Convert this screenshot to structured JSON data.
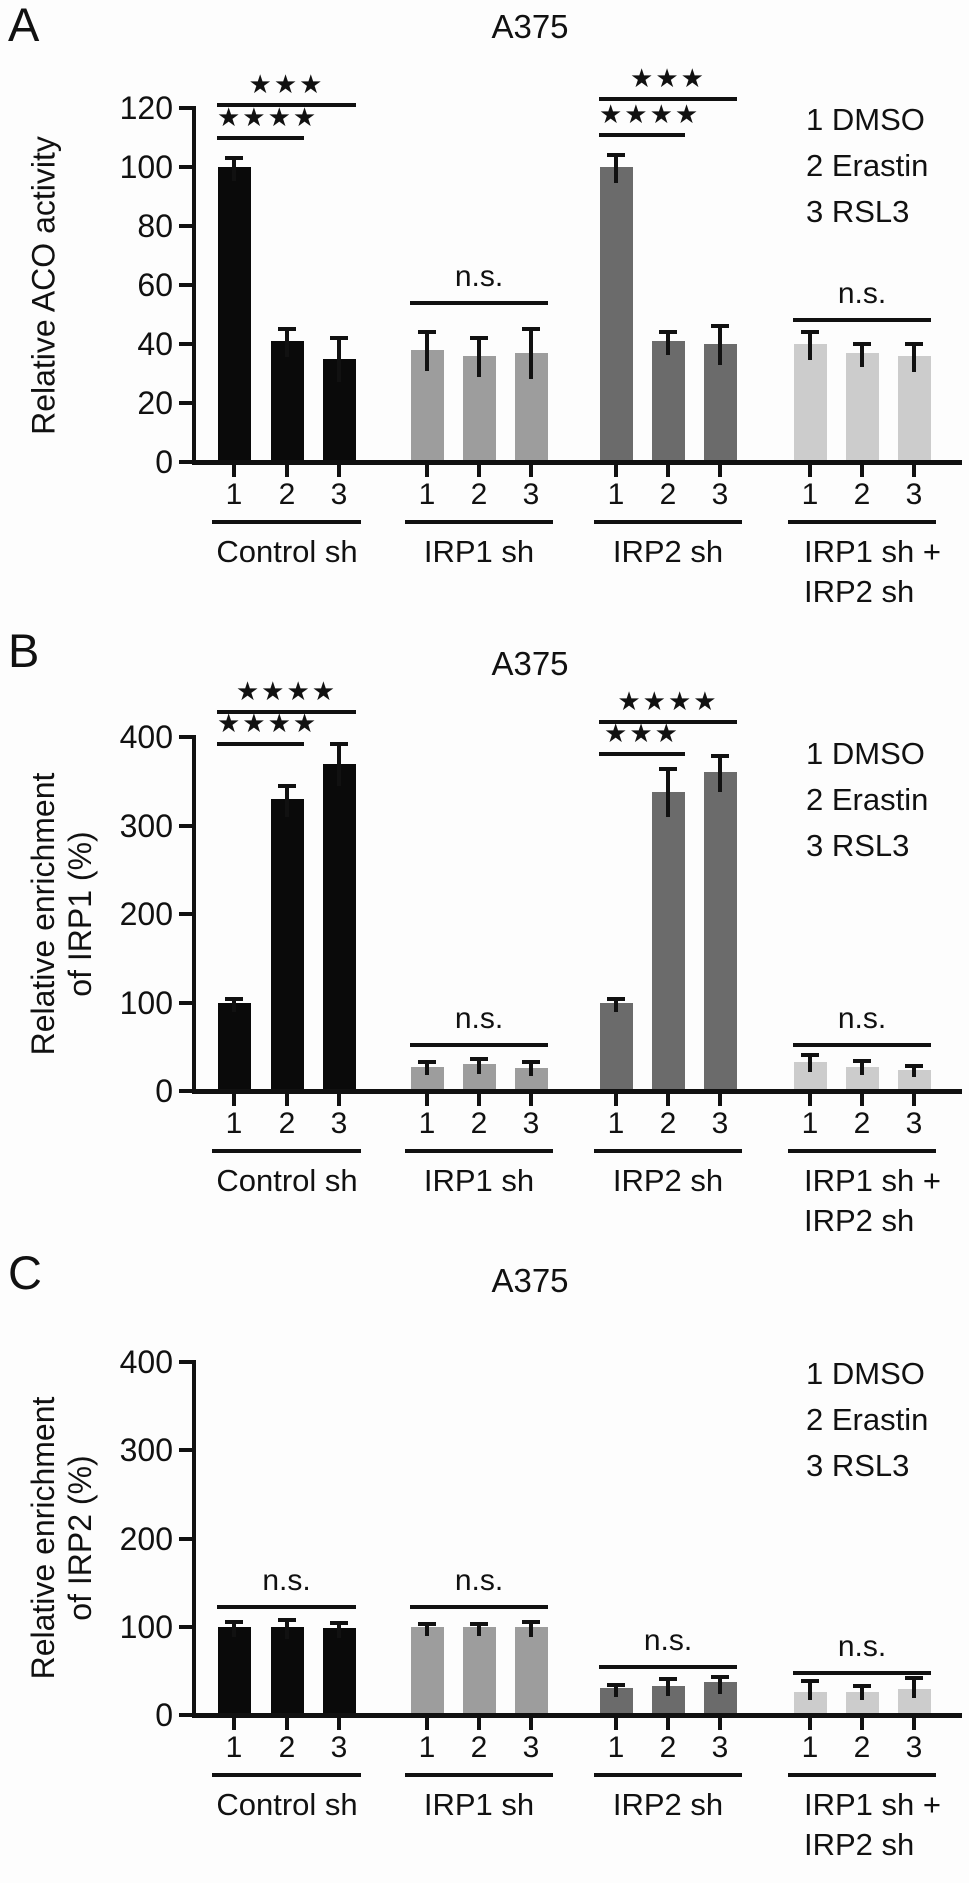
{
  "chart_data": [
    {
      "type": "bar",
      "panel_label": "A",
      "title": "A375",
      "ylabel_lines": [
        "Relative ACO activity"
      ],
      "ylim": [
        0,
        120
      ],
      "yticks": [
        0,
        20,
        40,
        60,
        80,
        100,
        120
      ],
      "grid": false,
      "legend_position": "top-right",
      "legend": [
        "1 DMSO",
        "2 Erastin",
        "3 RSL3"
      ],
      "xtick_labels": [
        "1",
        "2",
        "3"
      ],
      "groups": [
        {
          "label_lines": [
            "Control sh"
          ],
          "color": "#0a0a0a",
          "values": [
            100,
            41,
            35
          ],
          "errors": [
            3,
            4,
            7
          ]
        },
        {
          "label_lines": [
            "IRP1 sh"
          ],
          "color": "#9d9d9d",
          "values": [
            38,
            36,
            37
          ],
          "errors": [
            6,
            6,
            8
          ]
        },
        {
          "label_lines": [
            "IRP2 sh"
          ],
          "color": "#6b6b6b",
          "values": [
            100,
            41,
            40
          ],
          "errors": [
            4,
            3,
            6
          ]
        },
        {
          "label_lines": [
            "IRP1 sh +",
            "IRP2 sh"
          ],
          "color": "#cccccc",
          "values": [
            40,
            37,
            36
          ],
          "errors": [
            4,
            3,
            4
          ]
        }
      ],
      "annotations": [
        {
          "group": 0,
          "from": 0,
          "to": 1,
          "label": "★★★★",
          "y": 110,
          "style": "stars"
        },
        {
          "group": 0,
          "from": 0,
          "to": 2,
          "label": "★★★",
          "y": 121,
          "style": "stars"
        },
        {
          "group": 1,
          "from": 0,
          "to": 2,
          "label": "n.s.",
          "y": 54,
          "style": "ns"
        },
        {
          "group": 2,
          "from": 0,
          "to": 1,
          "label": "★★★★",
          "y": 111,
          "style": "stars"
        },
        {
          "group": 2,
          "from": 0,
          "to": 2,
          "label": "★★★",
          "y": 123,
          "style": "stars"
        },
        {
          "group": 3,
          "from": 0,
          "to": 2,
          "label": "n.s.",
          "y": 48,
          "style": "ns"
        }
      ]
    },
    {
      "type": "bar",
      "panel_label": "B",
      "title": "A375",
      "ylabel_lines": [
        "Relative enrichment",
        "of IRP1 (%)"
      ],
      "ylim": [
        0,
        400
      ],
      "yticks": [
        0,
        100,
        200,
        300,
        400
      ],
      "grid": false,
      "legend_position": "top-right",
      "legend": [
        "1 DMSO",
        "2 Erastin",
        "3 RSL3"
      ],
      "xtick_labels": [
        "1",
        "2",
        "3"
      ],
      "groups": [
        {
          "label_lines": [
            "Control sh"
          ],
          "color": "#0a0a0a",
          "values": [
            100,
            330,
            370
          ],
          "errors": [
            4,
            15,
            22
          ]
        },
        {
          "label_lines": [
            "IRP1 sh"
          ],
          "color": "#9d9d9d",
          "values": [
            27,
            30,
            26
          ],
          "errors": [
            6,
            6,
            7
          ]
        },
        {
          "label_lines": [
            "IRP2 sh"
          ],
          "color": "#6b6b6b",
          "values": [
            100,
            338,
            360
          ],
          "errors": [
            4,
            26,
            18
          ]
        },
        {
          "label_lines": [
            "IRP1 sh +",
            "IRP2 sh"
          ],
          "color": "#cccccc",
          "values": [
            33,
            27,
            24
          ],
          "errors": [
            8,
            7,
            4
          ]
        }
      ],
      "annotations": [
        {
          "group": 0,
          "from": 0,
          "to": 1,
          "label": "★★★★",
          "y": 392,
          "style": "stars"
        },
        {
          "group": 0,
          "from": 0,
          "to": 2,
          "label": "★★★★",
          "y": 428,
          "style": "stars"
        },
        {
          "group": 1,
          "from": 0,
          "to": 2,
          "label": "n.s.",
          "y": 52,
          "style": "ns"
        },
        {
          "group": 2,
          "from": 0,
          "to": 1,
          "label": "★★★",
          "y": 381,
          "style": "stars"
        },
        {
          "group": 2,
          "from": 0,
          "to": 2,
          "label": "★★★★",
          "y": 417,
          "style": "stars"
        },
        {
          "group": 3,
          "from": 0,
          "to": 2,
          "label": "n.s.",
          "y": 52,
          "style": "ns"
        }
      ]
    },
    {
      "type": "bar",
      "panel_label": "C",
      "title": "A375",
      "ylabel_lines": [
        "Relative enrichment",
        "of IRP2 (%)"
      ],
      "ylim": [
        0,
        400
      ],
      "yticks": [
        0,
        100,
        200,
        300,
        400
      ],
      "grid": false,
      "legend_position": "top-right",
      "legend": [
        "1 DMSO",
        "2 Erastin",
        "3 RSL3"
      ],
      "xtick_labels": [
        "1",
        "2",
        "3"
      ],
      "groups": [
        {
          "label_lines": [
            "Control sh"
          ],
          "color": "#0a0a0a",
          "values": [
            100,
            100,
            99
          ],
          "errors": [
            5,
            8,
            5
          ]
        },
        {
          "label_lines": [
            "IRP1 sh"
          ],
          "color": "#9d9d9d",
          "values": [
            100,
            100,
            100
          ],
          "errors": [
            3,
            3,
            5
          ]
        },
        {
          "label_lines": [
            "IRP2 sh"
          ],
          "color": "#6b6b6b",
          "values": [
            31,
            33,
            37
          ],
          "errors": [
            3,
            8,
            6
          ]
        },
        {
          "label_lines": [
            "IRP1 sh +",
            "IRP2 sh"
          ],
          "color": "#cccccc",
          "values": [
            26,
            26,
            30
          ],
          "errors": [
            13,
            7,
            12
          ]
        }
      ],
      "annotations": [
        {
          "group": 0,
          "from": 0,
          "to": 2,
          "label": "n.s.",
          "y": 122,
          "style": "ns"
        },
        {
          "group": 1,
          "from": 0,
          "to": 2,
          "label": "n.s.",
          "y": 122,
          "style": "ns"
        },
        {
          "group": 2,
          "from": 0,
          "to": 2,
          "label": "n.s.",
          "y": 54,
          "style": "ns"
        },
        {
          "group": 3,
          "from": 0,
          "to": 2,
          "label": "n.s.",
          "y": 48,
          "style": "ns"
        }
      ]
    }
  ]
}
